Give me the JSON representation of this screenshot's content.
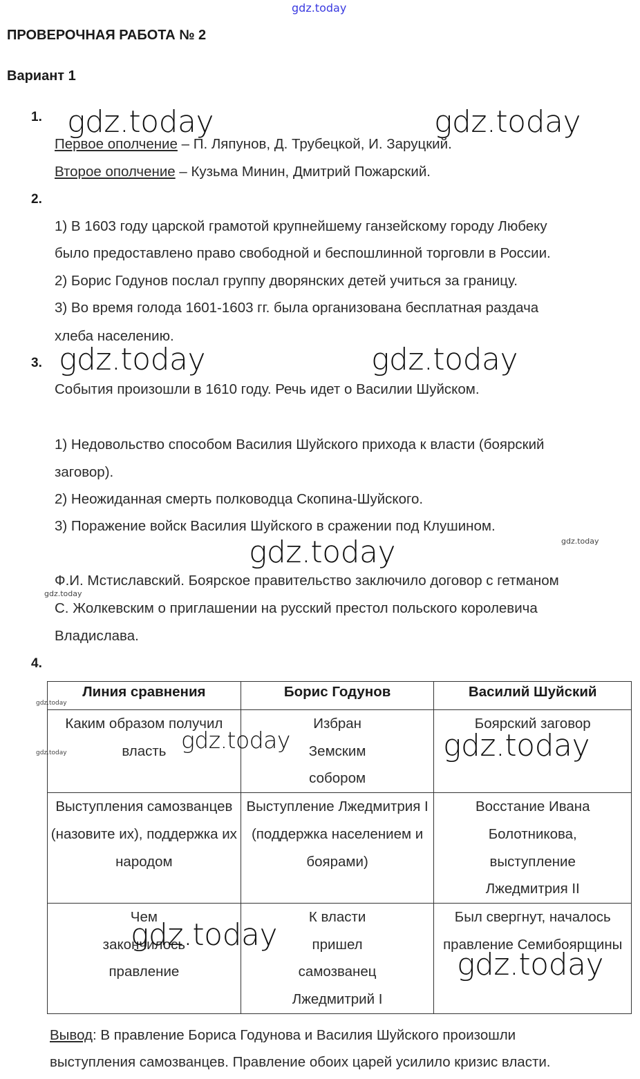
{
  "watermark": "gdz.today",
  "title": "ПРОВЕРОЧНАЯ РАБОТА № 2",
  "variant": "Вариант 1",
  "q1": {
    "num": "1.",
    "l1_label": "Первое ополчение",
    "l1_text": " – П. Ляпунов, Д. Трубецкой, И. Заруцкий.",
    "l2_label": "Второе ополчение",
    "l2_text": " – Кузьма Минин, Дмитрий Пожарский."
  },
  "q2": {
    "num": "2.",
    "lines": [
      "1) В 1603 году царской грамотой крупнейшему ганзейскому городу Любеку",
      "было предоставлено право свободной и беспошлинной торговли в России.",
      "2) Борис Годунов послал группу дворянских детей учиться за границу.",
      "3) Во время голода 1601-1603 гг. была организована бесплатная раздача",
      "хлеба населению."
    ]
  },
  "q3": {
    "num": "3.",
    "lines": [
      "События произошли в 1610 году. Речь идет о Василии Шуйском.",
      "1) Недовольство способом Василия Шуйского прихода к власти (боярский",
      "заговор).",
      "2) Неожиданная смерть полководца Скопина-Шуйского.",
      "3) Поражение войск Василия Шуйского в сражении под Клушином.",
      "Ф.И. Мстиславский. Боярское правительство заключило договор с гетманом",
      "С. Жолкевским о приглашении на русский престол польского королевича",
      "Владислава."
    ]
  },
  "q4": {
    "num": "4.",
    "headers": [
      "Линия сравнения",
      "Борис Годунов",
      "Василий Шуйский"
    ],
    "rows": [
      [
        "Каким образом получил власть",
        "Избран Земским собором",
        "Боярский заговор"
      ],
      [
        "Выступления самозванцев (назовите их), поддержка их народом",
        "Выступление Лжедмитрия I (поддержка населением и боярами)",
        "Восстание Ивана Болотникова, выступление Лжедмитрия II"
      ],
      [
        "Чем закончилось правление",
        "К власти пришел самозванец Лжедмитрий I",
        "Был свергнут, началось правление Семибоярщины"
      ]
    ]
  },
  "conclusion": {
    "label": "Вывод",
    "text": ": В правление Бориса Годунова и Василия Шуйского произошли",
    "line2": "выступления самозванцев. Правление обоих царей усилило кризис власти."
  }
}
